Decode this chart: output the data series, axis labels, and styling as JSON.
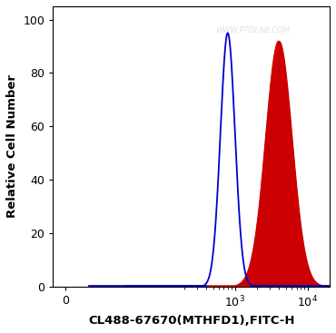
{
  "title": "",
  "watermark": "WWW.PTGLAB.COM",
  "xlabel": "CL488-67670(MTHFD1),FITC-H",
  "ylabel": "Relative Cell Number",
  "ylim": [
    0,
    105
  ],
  "yticks": [
    0,
    20,
    40,
    60,
    80,
    100
  ],
  "background_color": "#ffffff",
  "blue_curve": {
    "color": "#0000cc",
    "peak_x_log": 2.9,
    "peak_y": 95,
    "sigma": 0.1,
    "baseline": 0.3
  },
  "red_curve": {
    "color": "#cc0000",
    "fill_color": "#cc0000",
    "peak_x_log": 3.6,
    "peak_y": 92,
    "sigma": 0.18,
    "baseline": 0.3
  },
  "xlim_log": [
    1.0,
    4.3
  ],
  "xtick_positions": [
    0,
    1000,
    10000
  ],
  "xtick_labels": [
    "0",
    "$10^3$",
    "$10^4$"
  ]
}
